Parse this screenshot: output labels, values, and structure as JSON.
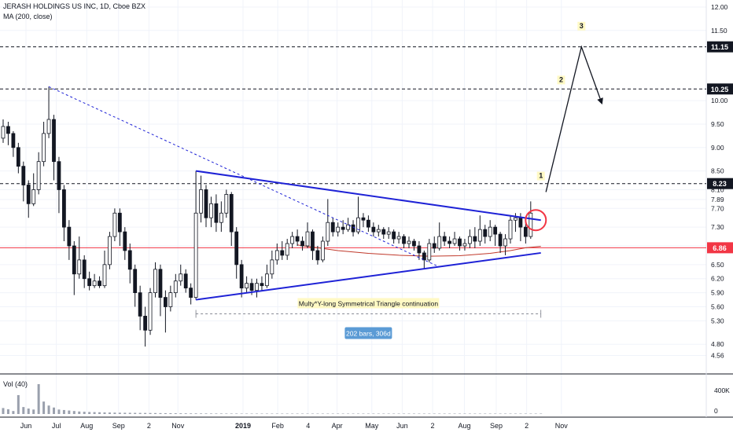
{
  "header": {
    "symbol_line": "JERASH HOLDINGS US INC, 1D, Cboe BZX",
    "indicator_line": "MA (200, close)"
  },
  "volume_pane": {
    "label": "Vol (40)",
    "ticks": [
      "400K",
      "0"
    ]
  },
  "chart_data": {
    "type": "candlestick",
    "title": "JERASH HOLDINGS US INC, 1D, Cboe BZX",
    "price_axis": {
      "scale": "linear",
      "ylim": [
        4.3,
        12.15
      ],
      "ticks": [
        "12.00",
        "11.50",
        "10.00",
        "9.50",
        "9.00",
        "8.50",
        "8.10",
        "7.89",
        "7.70",
        "7.30",
        "6.90",
        "6.50",
        "6.20",
        "5.90",
        "5.60",
        "5.30",
        "4.80",
        "4.56"
      ],
      "tick_values": [
        12.0,
        11.5,
        10.0,
        9.5,
        9.0,
        8.5,
        8.1,
        7.89,
        7.7,
        7.3,
        6.9,
        6.5,
        6.2,
        5.9,
        5.6,
        5.3,
        4.8,
        4.56
      ]
    },
    "time_axis": {
      "labels": [
        "Jun",
        "Jul",
        "Aug",
        "Sep",
        "2",
        "Nov",
        "2019",
        "Feb",
        "4",
        "Apr",
        "May",
        "Jun",
        "2",
        "Aug",
        "Sep",
        "2",
        "Nov"
      ],
      "bold_label": "2019",
      "label_day_index": [
        0,
        42,
        84,
        128,
        170,
        210,
        300,
        348,
        390,
        430,
        478,
        520,
        562,
        606,
        650,
        692,
        740
      ]
    },
    "horizontal_levels": [
      {
        "label": "11.15",
        "value": 11.15,
        "style": "dashed",
        "color": "#131722"
      },
      {
        "label": "10.25",
        "value": 10.25,
        "style": "dashed",
        "color": "#131722"
      },
      {
        "label": "8.23",
        "value": 8.23,
        "style": "dashed",
        "color": "#131722"
      },
      {
        "label": "6.86",
        "value": 6.86,
        "style": "solid",
        "color": "#f23645"
      }
    ],
    "candles": [
      {
        "o": 9.2,
        "c": 9.45,
        "h": 9.6,
        "l": 9.1
      },
      {
        "o": 9.45,
        "c": 9.3,
        "h": 9.55,
        "l": 9.05
      },
      {
        "o": 9.3,
        "c": 9.0,
        "h": 9.35,
        "l": 8.8
      },
      {
        "o": 9.0,
        "c": 8.6,
        "h": 9.1,
        "l": 8.45
      },
      {
        "o": 8.6,
        "c": 8.2,
        "h": 8.7,
        "l": 7.85
      },
      {
        "o": 8.2,
        "c": 7.8,
        "h": 8.3,
        "l": 7.5
      },
      {
        "o": 7.8,
        "c": 8.1,
        "h": 8.45,
        "l": 7.75
      },
      {
        "o": 8.1,
        "c": 8.7,
        "h": 8.9,
        "l": 8.0
      },
      {
        "o": 8.7,
        "c": 9.3,
        "h": 9.55,
        "l": 8.6
      },
      {
        "o": 9.3,
        "c": 9.6,
        "h": 10.3,
        "l": 9.2
      },
      {
        "o": 9.6,
        "c": 8.7,
        "h": 9.7,
        "l": 8.3
      },
      {
        "o": 8.7,
        "c": 8.1,
        "h": 8.8,
        "l": 7.6
      },
      {
        "o": 8.1,
        "c": 7.3,
        "h": 8.2,
        "l": 7.0
      },
      {
        "o": 7.3,
        "c": 6.9,
        "h": 7.45,
        "l": 6.6
      },
      {
        "o": 6.9,
        "c": 6.3,
        "h": 7.0,
        "l": 5.85
      },
      {
        "o": 6.3,
        "c": 6.6,
        "h": 7.1,
        "l": 6.2
      },
      {
        "o": 6.6,
        "c": 6.2,
        "h": 6.7,
        "l": 6.0
      },
      {
        "o": 6.2,
        "c": 6.05,
        "h": 6.35,
        "l": 5.95
      },
      {
        "o": 6.05,
        "c": 6.15,
        "h": 6.3,
        "l": 6.0
      },
      {
        "o": 6.15,
        "c": 6.05,
        "h": 6.25,
        "l": 6.0
      },
      {
        "o": 6.05,
        "c": 6.5,
        "h": 6.8,
        "l": 6.0
      },
      {
        "o": 6.5,
        "c": 7.1,
        "h": 7.2,
        "l": 6.4
      },
      {
        "o": 7.1,
        "c": 7.6,
        "h": 7.7,
        "l": 7.0
      },
      {
        "o": 7.6,
        "c": 7.2,
        "h": 7.7,
        "l": 6.9
      },
      {
        "o": 7.2,
        "c": 6.8,
        "h": 7.3,
        "l": 6.6
      },
      {
        "o": 6.8,
        "c": 6.4,
        "h": 6.95,
        "l": 6.1
      },
      {
        "o": 6.4,
        "c": 5.9,
        "h": 6.5,
        "l": 5.6
      },
      {
        "o": 5.9,
        "c": 5.4,
        "h": 6.05,
        "l": 5.1
      },
      {
        "o": 5.4,
        "c": 5.1,
        "h": 5.6,
        "l": 4.75
      },
      {
        "o": 5.1,
        "c": 5.9,
        "h": 6.0,
        "l": 5.0
      },
      {
        "o": 5.9,
        "c": 6.4,
        "h": 6.55,
        "l": 5.8
      },
      {
        "o": 6.4,
        "c": 5.8,
        "h": 6.5,
        "l": 5.4
      },
      {
        "o": 5.8,
        "c": 5.6,
        "h": 5.95,
        "l": 5.05
      },
      {
        "o": 5.6,
        "c": 5.9,
        "h": 6.05,
        "l": 5.5
      },
      {
        "o": 5.9,
        "c": 6.15,
        "h": 6.3,
        "l": 5.8
      },
      {
        "o": 6.15,
        "c": 6.3,
        "h": 6.5,
        "l": 6.05
      },
      {
        "o": 6.3,
        "c": 6.0,
        "h": 6.4,
        "l": 5.9
      },
      {
        "o": 6.0,
        "c": 5.8,
        "h": 6.1,
        "l": 5.65
      },
      {
        "o": 5.8,
        "c": 7.6,
        "h": 8.5,
        "l": 5.75
      },
      {
        "o": 7.6,
        "c": 8.1,
        "h": 8.4,
        "l": 7.4
      },
      {
        "o": 8.1,
        "c": 7.5,
        "h": 8.2,
        "l": 7.3
      },
      {
        "o": 7.5,
        "c": 7.8,
        "h": 7.95,
        "l": 7.3
      },
      {
        "o": 7.8,
        "c": 7.4,
        "h": 8.0,
        "l": 7.2
      },
      {
        "o": 7.4,
        "c": 7.6,
        "h": 7.85,
        "l": 7.2
      },
      {
        "o": 7.6,
        "c": 8.0,
        "h": 8.1,
        "l": 7.5
      },
      {
        "o": 8.0,
        "c": 7.2,
        "h": 8.05,
        "l": 6.9
      },
      {
        "o": 7.2,
        "c": 6.5,
        "h": 7.3,
        "l": 6.2
      },
      {
        "o": 6.5,
        "c": 6.0,
        "h": 6.6,
        "l": 5.8
      },
      {
        "o": 6.0,
        "c": 6.1,
        "h": 6.25,
        "l": 5.9
      },
      {
        "o": 6.1,
        "c": 5.95,
        "h": 6.2,
        "l": 5.85
      },
      {
        "o": 5.95,
        "c": 6.1,
        "h": 6.2,
        "l": 5.8
      },
      {
        "o": 6.1,
        "c": 6.05,
        "h": 6.25,
        "l": 5.95
      },
      {
        "o": 6.05,
        "c": 6.3,
        "h": 6.5,
        "l": 6.0
      },
      {
        "o": 6.3,
        "c": 6.6,
        "h": 6.8,
        "l": 6.2
      },
      {
        "o": 6.6,
        "c": 6.8,
        "h": 6.95,
        "l": 6.5
      },
      {
        "o": 6.8,
        "c": 6.7,
        "h": 7.0,
        "l": 6.6
      },
      {
        "o": 6.7,
        "c": 6.95,
        "h": 7.05,
        "l": 6.6
      },
      {
        "o": 6.95,
        "c": 7.1,
        "h": 7.2,
        "l": 6.85
      },
      {
        "o": 7.1,
        "c": 7.0,
        "h": 7.25,
        "l": 6.9
      },
      {
        "o": 7.0,
        "c": 6.9,
        "h": 7.1,
        "l": 6.8
      },
      {
        "o": 6.9,
        "c": 7.2,
        "h": 7.4,
        "l": 6.85
      },
      {
        "o": 7.2,
        "c": 6.8,
        "h": 7.25,
        "l": 6.6
      },
      {
        "o": 6.8,
        "c": 6.6,
        "h": 6.9,
        "l": 6.5
      },
      {
        "o": 6.6,
        "c": 7.0,
        "h": 7.1,
        "l": 6.55
      },
      {
        "o": 7.0,
        "c": 7.4,
        "h": 7.9,
        "l": 6.9
      },
      {
        "o": 7.4,
        "c": 7.2,
        "h": 7.5,
        "l": 7.1
      },
      {
        "o": 7.2,
        "c": 7.3,
        "h": 7.4,
        "l": 7.1
      },
      {
        "o": 7.3,
        "c": 7.25,
        "h": 7.45,
        "l": 7.15
      },
      {
        "o": 7.25,
        "c": 7.35,
        "h": 7.5,
        "l": 7.2
      },
      {
        "o": 7.35,
        "c": 7.2,
        "h": 7.45,
        "l": 7.1
      },
      {
        "o": 7.2,
        "c": 7.5,
        "h": 7.95,
        "l": 7.15
      },
      {
        "o": 7.5,
        "c": 7.45,
        "h": 7.6,
        "l": 7.3
      },
      {
        "o": 7.45,
        "c": 7.3,
        "h": 7.55,
        "l": 7.2
      },
      {
        "o": 7.3,
        "c": 7.2,
        "h": 7.4,
        "l": 7.1
      },
      {
        "o": 7.2,
        "c": 7.25,
        "h": 7.35,
        "l": 7.1
      },
      {
        "o": 7.25,
        "c": 7.15,
        "h": 7.3,
        "l": 7.05
      },
      {
        "o": 7.15,
        "c": 7.2,
        "h": 7.3,
        "l": 7.05
      },
      {
        "o": 7.2,
        "c": 7.05,
        "h": 7.25,
        "l": 6.95
      },
      {
        "o": 7.05,
        "c": 7.1,
        "h": 7.2,
        "l": 6.95
      },
      {
        "o": 7.1,
        "c": 6.95,
        "h": 7.15,
        "l": 6.85
      },
      {
        "o": 6.95,
        "c": 7.0,
        "h": 7.1,
        "l": 6.85
      },
      {
        "o": 7.0,
        "c": 6.9,
        "h": 7.05,
        "l": 6.8
      },
      {
        "o": 6.9,
        "c": 6.75,
        "h": 7.0,
        "l": 6.6
      },
      {
        "o": 6.75,
        "c": 6.6,
        "h": 6.8,
        "l": 6.4
      },
      {
        "o": 6.6,
        "c": 6.95,
        "h": 7.05,
        "l": 6.55
      },
      {
        "o": 6.95,
        "c": 6.85,
        "h": 7.1,
        "l": 6.75
      },
      {
        "o": 6.85,
        "c": 7.1,
        "h": 7.4,
        "l": 6.8
      },
      {
        "o": 7.1,
        "c": 7.0,
        "h": 7.2,
        "l": 6.9
      },
      {
        "o": 7.0,
        "c": 6.95,
        "h": 7.1,
        "l": 6.85
      },
      {
        "o": 6.95,
        "c": 7.05,
        "h": 7.2,
        "l": 6.9
      },
      {
        "o": 7.05,
        "c": 6.9,
        "h": 7.1,
        "l": 6.8
      },
      {
        "o": 6.9,
        "c": 6.95,
        "h": 7.05,
        "l": 6.8
      },
      {
        "o": 6.95,
        "c": 7.1,
        "h": 7.25,
        "l": 6.85
      },
      {
        "o": 7.1,
        "c": 7.0,
        "h": 7.3,
        "l": 6.85
      },
      {
        "o": 7.0,
        "c": 7.25,
        "h": 7.55,
        "l": 6.9
      },
      {
        "o": 7.25,
        "c": 7.1,
        "h": 7.35,
        "l": 6.95
      },
      {
        "o": 7.1,
        "c": 7.3,
        "h": 7.45,
        "l": 7.0
      },
      {
        "o": 7.3,
        "c": 7.15,
        "h": 7.35,
        "l": 6.9
      },
      {
        "o": 7.15,
        "c": 6.9,
        "h": 7.2,
        "l": 6.75
      },
      {
        "o": 6.9,
        "c": 7.05,
        "h": 7.15,
        "l": 6.7
      },
      {
        "o": 7.05,
        "c": 7.45,
        "h": 7.55,
        "l": 6.95
      },
      {
        "o": 7.45,
        "c": 7.5,
        "h": 7.6,
        "l": 7.2
      },
      {
        "o": 7.5,
        "c": 7.3,
        "h": 7.6,
        "l": 7.0
      },
      {
        "o": 7.3,
        "c": 7.1,
        "h": 7.4,
        "l": 6.95
      },
      {
        "o": 7.1,
        "c": 7.6,
        "h": 7.85,
        "l": 7.05
      }
    ],
    "ma200": {
      "name": "MA (200, close)",
      "color": "#c0392b",
      "points": [
        {
          "i": 58,
          "v": 6.92
        },
        {
          "i": 62,
          "v": 6.86
        },
        {
          "i": 66,
          "v": 6.8
        },
        {
          "i": 72,
          "v": 6.74
        },
        {
          "i": 78,
          "v": 6.7
        },
        {
          "i": 84,
          "v": 6.68
        },
        {
          "i": 90,
          "v": 6.69
        },
        {
          "i": 96,
          "v": 6.74
        },
        {
          "i": 100,
          "v": 6.8
        },
        {
          "i": 103,
          "v": 6.86
        },
        {
          "i": 106,
          "v": 6.89
        }
      ]
    },
    "trendlines": [
      {
        "kind": "upper-triangle",
        "style": "solid",
        "color": "#1e22d6",
        "from": {
          "i": 38,
          "v": 8.5
        },
        "to": {
          "i": 106,
          "v": 7.45
        }
      },
      {
        "kind": "lower-triangle",
        "style": "solid",
        "color": "#1e22d6",
        "from": {
          "i": 38,
          "v": 5.75
        },
        "to": {
          "i": 106,
          "v": 6.75
        }
      },
      {
        "kind": "long-downtrend",
        "style": "dashed",
        "color": "#1e22d6",
        "from": {
          "i": 9,
          "v": 10.3
        },
        "to": {
          "i": 86,
          "v": 6.45
        }
      }
    ],
    "projection": {
      "color": "#131722",
      "points": [
        {
          "i": 107,
          "v": 8.05
        },
        {
          "i": 114,
          "v": 11.15
        },
        {
          "i": 118,
          "v": 9.95
        }
      ]
    },
    "wave_labels": [
      {
        "text": "1",
        "i": 106,
        "v": 8.35
      },
      {
        "text": "2",
        "i": 110,
        "v": 10.4
      },
      {
        "text": "3",
        "i": 114,
        "v": 11.55
      }
    ],
    "breakout_circle": {
      "i": 105,
      "v": 7.45
    },
    "annotations": {
      "pattern_label": "Multy*Y-long Symmetrical Triangle continuation",
      "range_label": "202 bars, 306d",
      "range_from_i": 38,
      "range_to_i": 106,
      "range_v": 5.45
    },
    "volume": {
      "max": 600000,
      "values": [
        120000,
        95000,
        60000,
        380000,
        140000,
        110000,
        90000,
        600000,
        250000,
        170000,
        130000,
        90000,
        80000,
        70000,
        60000,
        50000,
        45000,
        40000,
        38000,
        35000,
        32000,
        30000,
        28000,
        26000,
        25000,
        24000,
        23000,
        22000,
        21000,
        20000,
        19000,
        18000,
        17000,
        16000,
        15000,
        14000,
        13000,
        12000,
        12000,
        11000,
        11000,
        10000,
        10000,
        10000,
        9000,
        9000,
        9000,
        8000,
        8000,
        8000,
        8000,
        8000,
        8000,
        8000,
        8000,
        8000,
        8000,
        8000,
        8000,
        8000,
        8000,
        8000,
        8000,
        8000,
        8000,
        8000,
        8000,
        8000,
        8000,
        8000,
        8000,
        8000,
        8000,
        8000,
        8000,
        8000,
        8000,
        8000,
        8000,
        8000,
        8000,
        8000,
        8000,
        8000,
        8000,
        8000,
        8000,
        8000,
        8000,
        8000,
        8000,
        8000,
        8000,
        8000,
        8000,
        8000,
        8000,
        8000,
        8000,
        8000,
        8000,
        8000,
        8000,
        8000,
        8000,
        8000,
        8000
      ]
    },
    "colors": {
      "up": "#131722",
      "down": "#131722",
      "grid": "#f0f3fa",
      "axis_text": "#131722",
      "tag_bg": "#131722",
      "tag_fg": "#ffffff",
      "level_red": "#f23645",
      "circle": "#f23645",
      "range_box": "#5b9bd5",
      "pattern_box": "#fff9c4"
    }
  }
}
